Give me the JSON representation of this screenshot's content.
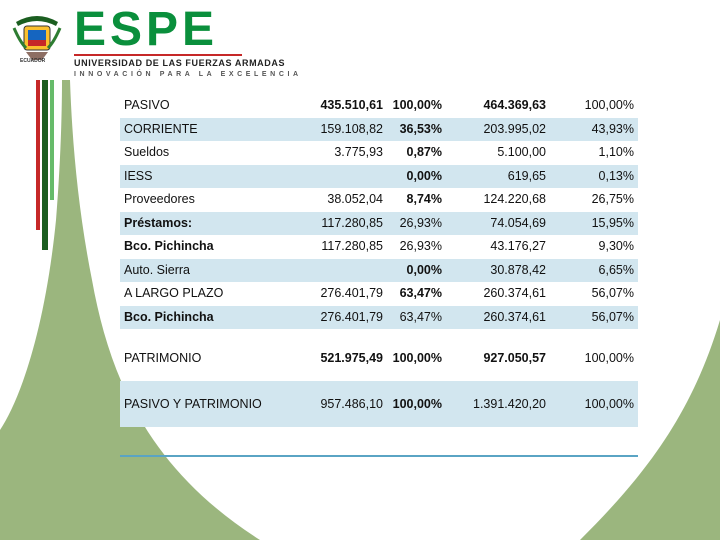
{
  "header": {
    "brand_name": "ESPE",
    "brand_line1": "UNIVERSIDAD DE LAS FUERZAS ARMADAS",
    "brand_line2": "INNOVACIÓN PARA LA EXCELENCIA",
    "crest_label": "ECUADOR"
  },
  "colors": {
    "brand_green": "#0a8f3c",
    "row_shade": "#d2e6ef",
    "deco_green": "#9bb67e",
    "deco_dark": "#2e7d32",
    "deco_red": "#c62828"
  },
  "table": {
    "rows": [
      {
        "label": "PASIVO",
        "v1": "435.510,61",
        "p1": "100,00%",
        "v2": "464.369,63",
        "p2": "100,00%",
        "shade": false
      },
      {
        "label": "CORRIENTE",
        "v1": "159.108,82",
        "p1": "36,53%",
        "v2": "203.995,02",
        "p2": "43,93%",
        "shade": true
      },
      {
        "label": "Sueldos",
        "v1": "3.775,93",
        "p1": "0,87%",
        "v2": "5.100,00",
        "p2": "1,10%",
        "shade": false
      },
      {
        "label": "IESS",
        "v1": "",
        "p1": "0,00%",
        "v2": "619,65",
        "p2": "0,13%",
        "shade": true
      },
      {
        "label": "Proveedores",
        "v1": "38.052,04",
        "p1": "8,74%",
        "v2": "124.220,68",
        "p2": "26,75%",
        "shade": false
      },
      {
        "label": "Préstamos:",
        "v1": "117.280,85",
        "p1": "26,93%",
        "v2": "74.054,69",
        "p2": "15,95%",
        "shade": true
      },
      {
        "label": "Bco. Pichincha",
        "v1": "117.280,85",
        "p1": "26,93%",
        "v2": "43.176,27",
        "p2": "9,30%",
        "shade": false
      },
      {
        "label": "Auto. Sierra",
        "v1": "",
        "p1": "0,00%",
        "v2": "30.878,42",
        "p2": "6,65%",
        "shade": true
      },
      {
        "label": "A LARGO PLAZO",
        "v1": "276.401,79",
        "p1": "63,47%",
        "v2": "260.374,61",
        "p2": "56,07%",
        "shade": false
      },
      {
        "label": "Bco. Pichincha",
        "v1": "276.401,79",
        "p1": "63,47%",
        "v2": "260.374,61",
        "p2": "56,07%",
        "shade": true
      },
      {
        "label": "PATRIMONIO",
        "v1": "521.975,49",
        "p1": "100,00%",
        "v2": "927.050,57",
        "p2": "100,00%",
        "shade": false
      },
      {
        "label": "PASIVO Y PATRIMONIO",
        "v1": "957.486,10",
        "p1": "100,00%",
        "v2": "1.391.420,20",
        "p2": "100,00%",
        "shade": true
      }
    ]
  }
}
